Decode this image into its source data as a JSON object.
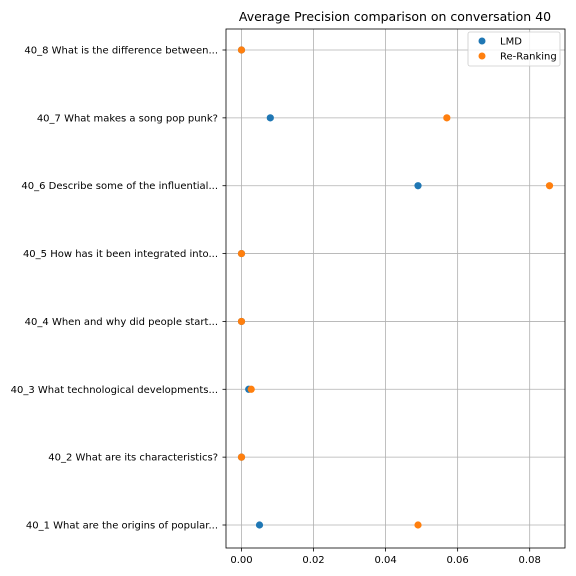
{
  "chart_data": {
    "type": "scatter",
    "title": "Average Precision comparison on conversation 40",
    "xlabel": "",
    "ylabel": "",
    "categories": [
      "40_1 What are the origins of popular...",
      "40_2 What are its characteristics?",
      "40_3 What technological developments...",
      "40_4 When and why did people start...",
      "40_5 How has it been integrated into...",
      "40_6 Describe some of the influential...",
      "40_7 What makes a song pop punk?",
      "40_8 What is the difference between..."
    ],
    "series": [
      {
        "name": "LMD",
        "color": "#1f77b4",
        "values": [
          0.005,
          0.0,
          0.002,
          0.0,
          0.0,
          0.049,
          0.008,
          0.0
        ]
      },
      {
        "name": "Re-Ranking",
        "color": "#ff7f0e",
        "values": [
          0.049,
          0.0,
          0.0027,
          0.0,
          0.0,
          0.0855,
          0.057,
          0.0
        ]
      }
    ],
    "xlim": [
      -0.0043,
      0.0898
    ],
    "xticks": [
      0.0,
      0.02,
      0.04,
      0.06,
      0.08
    ],
    "xtick_labels": [
      "0.00",
      "0.02",
      "0.04",
      "0.06",
      "0.08"
    ],
    "grid": true,
    "legend_position": "top-right"
  }
}
